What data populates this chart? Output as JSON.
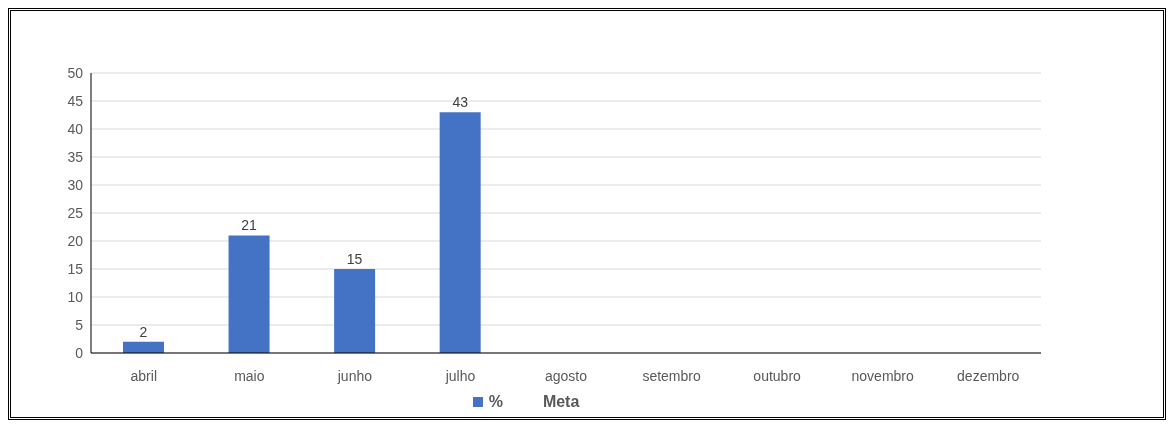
{
  "chart_data": {
    "type": "bar",
    "categories": [
      "abril",
      "maio",
      "junho",
      "julho",
      "agosto",
      "setembro",
      "outubro",
      "novembro",
      "dezembro"
    ],
    "series": [
      {
        "name": "%",
        "color": "#4472c4",
        "values": [
          2,
          21,
          15,
          43,
          null,
          null,
          null,
          null,
          null
        ]
      },
      {
        "name": "Meta",
        "type": "line",
        "values": [
          null,
          null,
          null,
          null,
          null,
          null,
          null,
          null,
          null
        ]
      }
    ],
    "ylim": [
      0,
      50
    ],
    "yticks": [
      0,
      5,
      10,
      15,
      20,
      25,
      30,
      35,
      40,
      45,
      50
    ],
    "grid": "y",
    "legend": "bottom",
    "data_labels": true
  }
}
